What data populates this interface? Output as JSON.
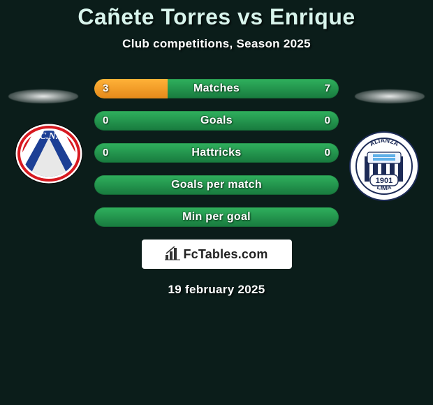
{
  "title": "Cañete Torres vs Enrique",
  "subtitle": "Club competitions, Season 2025",
  "date": "19 february 2025",
  "brand": "FcTables.com",
  "colors": {
    "background": "#0b1d1a",
    "bar_base_top": "#2fb05d",
    "bar_base_bottom": "#187a3e",
    "bar_fill_top": "#ffb238",
    "bar_fill_bottom": "#e6891a",
    "text": "#ffffff",
    "title": "#d8f4ec"
  },
  "bars": {
    "items": [
      {
        "label": "Matches",
        "left": "3",
        "right": "7",
        "left_pct": 30,
        "right_pct": 0
      },
      {
        "label": "Goals",
        "left": "0",
        "right": "0",
        "left_pct": 0,
        "right_pct": 0
      },
      {
        "label": "Hattricks",
        "left": "0",
        "right": "0",
        "left_pct": 0,
        "right_pct": 0
      },
      {
        "label": "Goals per match",
        "left": "",
        "right": "",
        "left_pct": 0,
        "right_pct": 0
      },
      {
        "label": "Min per goal",
        "left": "",
        "right": "",
        "left_pct": 0,
        "right_pct": 0
      }
    ]
  },
  "badge_left": {
    "name": "Nacional Asuncion",
    "colors": {
      "outer": "#ffffff",
      "stripe1": "#1c3f95",
      "stripe2": "#e0e0e0",
      "stripe3": "#d71920"
    },
    "initials": "C.N."
  },
  "badge_right": {
    "name": "Alianza Lima",
    "colors": {
      "outer": "#ffffff",
      "stripe": "#1d2b57",
      "accent": "#1d2b57"
    },
    "year": "1901",
    "text_top": "ALIANZA",
    "text_bottom": "LIMA"
  }
}
